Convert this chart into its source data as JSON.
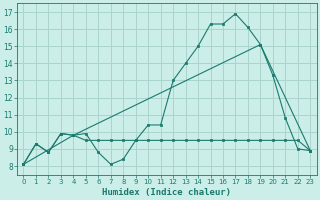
{
  "background_color": "#cceee8",
  "grid_color": "#aad4ce",
  "line_color": "#1a7a6e",
  "xlabel": "Humidex (Indice chaleur)",
  "ylim": [
    7.5,
    17.5
  ],
  "xlim": [
    -0.5,
    23.5
  ],
  "yticks": [
    8,
    9,
    10,
    11,
    12,
    13,
    14,
    15,
    16,
    17
  ],
  "xticks": [
    0,
    1,
    2,
    3,
    4,
    5,
    6,
    7,
    8,
    9,
    10,
    11,
    12,
    13,
    14,
    15,
    16,
    17,
    18,
    19,
    20,
    21,
    22,
    23
  ],
  "series1_x": [
    0,
    1,
    2,
    3,
    4,
    5,
    6,
    7,
    8,
    9,
    10,
    11,
    12,
    13,
    14,
    15,
    16,
    17,
    18,
    19,
    20,
    21,
    22,
    23
  ],
  "series1_y": [
    8.1,
    9.3,
    8.8,
    9.9,
    9.8,
    9.9,
    8.8,
    8.1,
    8.4,
    9.5,
    10.4,
    10.4,
    13.0,
    14.0,
    15.0,
    16.3,
    16.3,
    16.9,
    16.1,
    15.1,
    13.3,
    10.8,
    9.0,
    8.9
  ],
  "series2_x": [
    0,
    1,
    2,
    3,
    4,
    5,
    6,
    7,
    8,
    9,
    10,
    11,
    12,
    13,
    14,
    15,
    16,
    17,
    18,
    19,
    20,
    21,
    22,
    23
  ],
  "series2_y": [
    8.1,
    9.3,
    8.8,
    9.9,
    9.8,
    9.5,
    9.5,
    9.5,
    9.5,
    9.5,
    9.5,
    9.5,
    9.5,
    9.5,
    9.5,
    9.5,
    9.5,
    9.5,
    9.5,
    9.5,
    9.5,
    9.5,
    9.5,
    8.9
  ],
  "series3_x": [
    0,
    4,
    19,
    23
  ],
  "series3_y": [
    8.1,
    9.8,
    15.1,
    8.9
  ]
}
